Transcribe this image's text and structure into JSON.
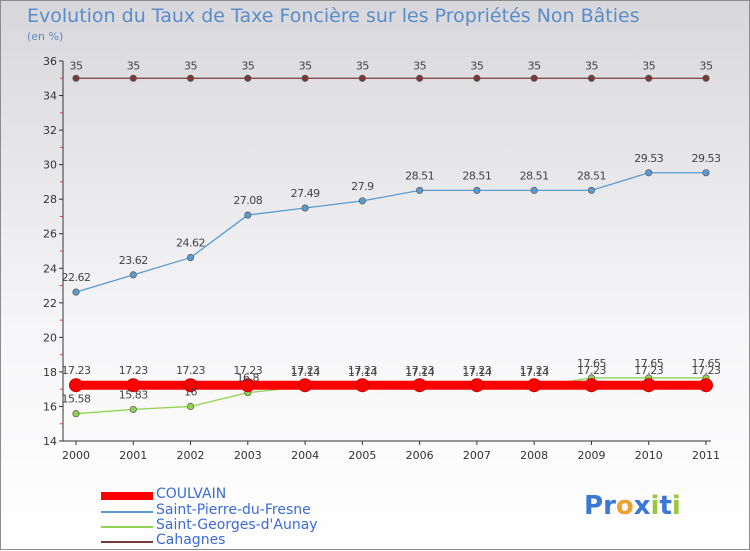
{
  "header": {
    "title": "Evolution du Taux de Taxe Foncière sur les Propriétés Non Bâties",
    "unit": "(en %)"
  },
  "logo": {
    "text": "Proxiti",
    "letters": [
      "P",
      "r",
      "o",
      "x",
      "i",
      "t",
      "i"
    ],
    "colors": [
      "#3a78d4",
      "#3a78d4",
      "#f0a030",
      "#3a78d4",
      "#9ac83c",
      "#3a78d4",
      "#9ac83c"
    ]
  },
  "chart_data": {
    "type": "line",
    "title": "Evolution du Taux de Taxe Foncière sur les Propriétés Non Bâties",
    "ylabel": "(en %)",
    "xlabel": "",
    "x": [
      "2000",
      "2001",
      "2002",
      "2003",
      "2004",
      "2005",
      "2006",
      "2007",
      "2008",
      "2009",
      "2010",
      "2011"
    ],
    "ylim": [
      14,
      36
    ],
    "yticks": [
      14,
      16,
      18,
      20,
      22,
      24,
      26,
      28,
      30,
      32,
      34,
      36
    ],
    "grid": false,
    "legend": "bottom-left",
    "series": [
      {
        "name": "COULVAIN",
        "color": "#ff0000",
        "values": [
          17.23,
          17.23,
          17.23,
          17.23,
          17.23,
          17.23,
          17.23,
          17.23,
          17.23,
          17.23,
          17.23,
          17.23
        ],
        "labels": [
          "17.23",
          "17.23",
          "17.23",
          "17.23",
          "17.23",
          "17.23",
          "17.23",
          "17.23",
          "17.23",
          "17.23",
          "17.23",
          "17.23"
        ]
      },
      {
        "name": "Saint-Pierre-du-Fresne",
        "color": "#5a9bd0",
        "values": [
          22.62,
          23.62,
          24.62,
          27.08,
          27.49,
          27.9,
          28.51,
          28.51,
          28.51,
          28.51,
          29.53,
          29.53
        ],
        "labels": [
          "22.62",
          "23.62",
          "24.62",
          "27.08",
          "27.49",
          "27.9",
          "28.51",
          "28.51",
          "28.51",
          "28.51",
          "29.53",
          "29.53"
        ]
      },
      {
        "name": "Saint-Georges-d'Aunay",
        "color": "#8fd450",
        "values": [
          15.58,
          15.83,
          16,
          16.8,
          17.14,
          17.14,
          17.14,
          17.14,
          17.14,
          17.65,
          17.65,
          17.65
        ],
        "labels": [
          "15.58",
          "15.83",
          "16",
          "16.8",
          "17.14",
          "17.14",
          "17.14",
          "17.14",
          "17.14",
          "17.65",
          "17.65",
          "17.65"
        ]
      },
      {
        "name": "Cahagnes",
        "color": "#7a3a3a",
        "values": [
          35,
          35,
          35,
          35,
          35,
          35,
          35,
          35,
          35,
          35,
          35,
          35
        ],
        "labels": [
          "35",
          "35",
          "35",
          "35",
          "35",
          "35",
          "35",
          "35",
          "35",
          "35",
          "35",
          "35"
        ]
      }
    ]
  }
}
